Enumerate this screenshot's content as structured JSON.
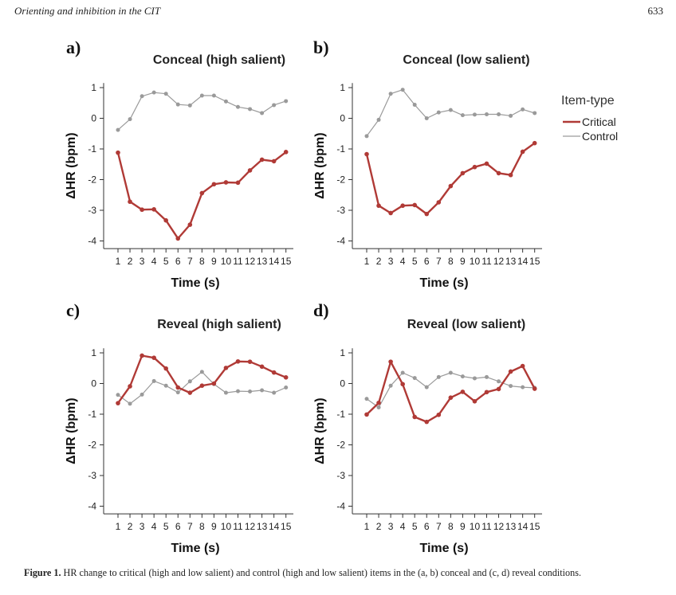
{
  "page": {
    "running_head": "Orienting and inhibition in the CIT",
    "page_number": "633",
    "caption_label": "Figure 1.",
    "caption_text": " HR change to critical (high and low salient) and control (high and low salient) items in the (a, b) conceal and (c, d) reveal conditions."
  },
  "legend": {
    "title": "Item-type",
    "entries": [
      {
        "name": "Critical",
        "color": "#b03a36"
      },
      {
        "name": "Control",
        "color": "#9a9a9a"
      }
    ]
  },
  "chart_data": [
    {
      "panel": "a)",
      "type": "line",
      "title": "Conceal (high salient)",
      "xlabel": "Time (s)",
      "ylabel": "ΔHR (bpm)",
      "x": [
        1,
        2,
        3,
        4,
        5,
        6,
        7,
        8,
        9,
        10,
        11,
        12,
        13,
        14,
        15
      ],
      "xticks": [
        "1",
        "2",
        "3",
        "4",
        "5",
        "6",
        "7",
        "8",
        "9",
        "10",
        "11",
        "12",
        "13",
        "14",
        "15"
      ],
      "yticks": [
        "1",
        "0",
        "-1",
        "-2",
        "-3",
        "-4"
      ],
      "ylim": [
        -4.25,
        1.15
      ],
      "series": [
        {
          "name": "Critical",
          "values": [
            -1.12,
            -2.72,
            -2.98,
            -2.97,
            -3.33,
            -3.92,
            -3.47,
            -2.44,
            -2.15,
            -2.09,
            -2.1,
            -1.7,
            -1.35,
            -1.4,
            -1.1
          ]
        },
        {
          "name": "Control",
          "values": [
            -0.38,
            -0.03,
            0.72,
            0.84,
            0.8,
            0.45,
            0.42,
            0.74,
            0.74,
            0.55,
            0.37,
            0.3,
            0.17,
            0.43,
            0.56
          ]
        }
      ]
    },
    {
      "panel": "b)",
      "type": "line",
      "title": "Conceal (low salient)",
      "xlabel": "Time (s)",
      "ylabel": "ΔHR (bpm)",
      "x": [
        1,
        2,
        3,
        4,
        5,
        6,
        7,
        8,
        9,
        10,
        11,
        12,
        13,
        14,
        15
      ],
      "xticks": [
        "1",
        "2",
        "3",
        "4",
        "5",
        "6",
        "7",
        "8",
        "9",
        "10",
        "11",
        "12",
        "13",
        "14",
        "15"
      ],
      "yticks": [
        "1",
        "0",
        "-1",
        "-2",
        "-3",
        "-4"
      ],
      "ylim": [
        -4.25,
        1.15
      ],
      "series": [
        {
          "name": "Critical",
          "values": [
            -1.17,
            -2.85,
            -3.09,
            -2.85,
            -2.83,
            -3.12,
            -2.74,
            -2.21,
            -1.79,
            -1.59,
            -1.48,
            -1.79,
            -1.85,
            -1.09,
            -0.81
          ]
        },
        {
          "name": "Control",
          "values": [
            -0.58,
            -0.05,
            0.8,
            0.93,
            0.44,
            0.0,
            0.19,
            0.27,
            0.1,
            0.12,
            0.13,
            0.13,
            0.08,
            0.29,
            0.17
          ]
        }
      ]
    },
    {
      "panel": "c)",
      "type": "line",
      "title": "Reveal (high salient)",
      "xlabel": "Time (s)",
      "ylabel": "ΔHR (bpm)",
      "x": [
        1,
        2,
        3,
        4,
        5,
        6,
        7,
        8,
        9,
        10,
        11,
        12,
        13,
        14,
        15
      ],
      "xticks": [
        "1",
        "2",
        "3",
        "4",
        "5",
        "6",
        "7",
        "8",
        "9",
        "10",
        "11",
        "12",
        "13",
        "14",
        "15"
      ],
      "yticks": [
        "1",
        "0",
        "-1",
        "-2",
        "-3",
        "-4"
      ],
      "ylim": [
        -4.25,
        1.15
      ],
      "series": [
        {
          "name": "Critical",
          "values": [
            -0.64,
            -0.09,
            0.91,
            0.84,
            0.49,
            -0.13,
            -0.3,
            -0.07,
            0.0,
            0.51,
            0.72,
            0.71,
            0.55,
            0.36,
            0.2
          ]
        },
        {
          "name": "Control",
          "values": [
            -0.37,
            -0.66,
            -0.36,
            0.08,
            -0.07,
            -0.29,
            0.07,
            0.38,
            -0.02,
            -0.3,
            -0.25,
            -0.26,
            -0.22,
            -0.3,
            -0.13
          ]
        }
      ]
    },
    {
      "panel": "d)",
      "type": "line",
      "title": "Reveal (low salient)",
      "xlabel": "Time (s)",
      "ylabel": "ΔHR (bpm)",
      "x": [
        1,
        2,
        3,
        4,
        5,
        6,
        7,
        8,
        9,
        10,
        11,
        12,
        13,
        14,
        15
      ],
      "xticks": [
        "1",
        "2",
        "3",
        "4",
        "5",
        "6",
        "7",
        "8",
        "9",
        "10",
        "11",
        "12",
        "13",
        "14",
        "15"
      ],
      "yticks": [
        "1",
        "0",
        "-1",
        "-2",
        "-3",
        "-4"
      ],
      "ylim": [
        -4.25,
        1.15
      ],
      "series": [
        {
          "name": "Critical",
          "values": [
            -1.01,
            -0.63,
            0.71,
            -0.02,
            -1.09,
            -1.25,
            -1.02,
            -0.46,
            -0.27,
            -0.58,
            -0.28,
            -0.18,
            0.39,
            0.57,
            -0.17
          ]
        },
        {
          "name": "Control",
          "values": [
            -0.5,
            -0.78,
            -0.07,
            0.35,
            0.18,
            -0.12,
            0.21,
            0.35,
            0.23,
            0.17,
            0.21,
            0.07,
            -0.08,
            -0.12,
            -0.14
          ]
        }
      ]
    }
  ]
}
